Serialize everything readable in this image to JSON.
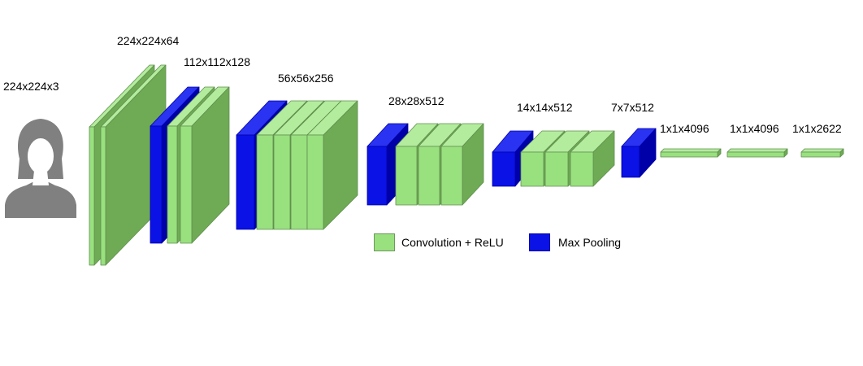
{
  "colors": {
    "conv_front": "#99e07f",
    "conv_side": "#6faa55",
    "conv_top": "#b4ec9e",
    "conv_stroke": "#5f8f4c",
    "pool_front": "#0a12e6",
    "pool_side": "#0000a8",
    "pool_top": "#2a33f2",
    "input_icon": "#808080"
  },
  "input": {
    "label": "224x224x3",
    "icon": "person-silhouette-icon"
  },
  "layers": [
    {
      "label": "224x224x64",
      "kind": "conv_block",
      "convs": 2,
      "pool": false
    },
    {
      "label": "112x112x128",
      "kind": "conv_block",
      "convs": 2,
      "pool": true
    },
    {
      "label": "56x56x256",
      "kind": "conv_block",
      "convs": 3,
      "pool": true
    },
    {
      "label": "28x28x512",
      "kind": "conv_block",
      "convs": 3,
      "pool": true
    },
    {
      "label": "14x14x512",
      "kind": "conv_block",
      "convs": 3,
      "pool": true
    },
    {
      "label": "7x7x512",
      "kind": "pool_only",
      "convs": 0,
      "pool": true
    },
    {
      "label": "1x1x4096",
      "kind": "fc"
    },
    {
      "label": "1x1x4096",
      "kind": "fc"
    },
    {
      "label": "1x1x2622",
      "kind": "fc"
    }
  ],
  "legend": {
    "conv_label": "Convolution + ReLU",
    "pool_label": "Max Pooling"
  }
}
